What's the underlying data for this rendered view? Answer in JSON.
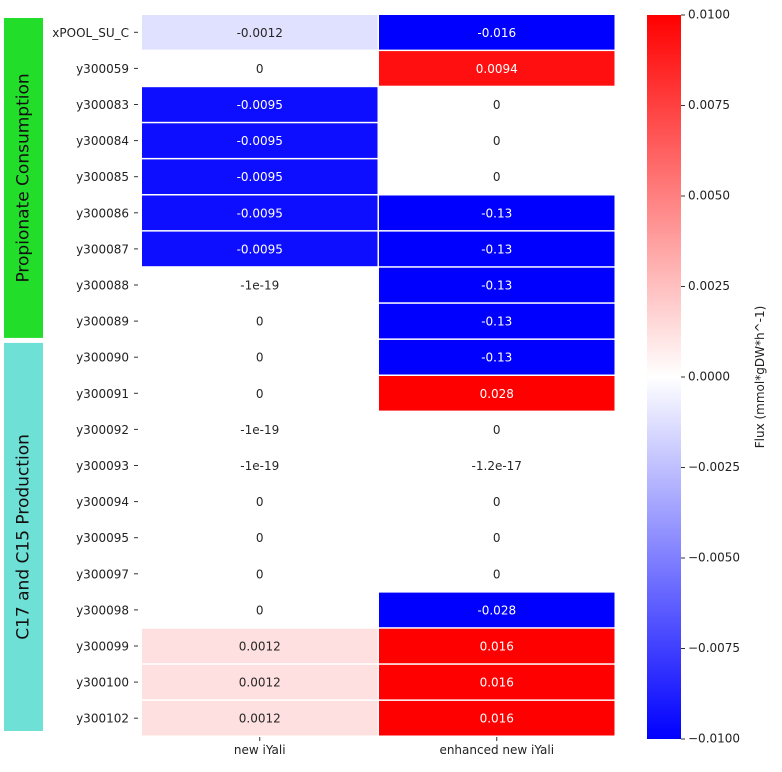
{
  "chart_data": {
    "type": "heatmap",
    "title": "",
    "xlabel": "",
    "ylabel": "",
    "columns": [
      "new iYali",
      "enhanced new iYali"
    ],
    "rows": [
      {
        "label": "xPOOL_SU_C",
        "values": [
          -0.0012,
          -0.016
        ],
        "text": [
          "-0.0012",
          "-0.016"
        ]
      },
      {
        "label": "y300059",
        "values": [
          0,
          0.0094
        ],
        "text": [
          "0",
          "0.0094"
        ]
      },
      {
        "label": "y300083",
        "values": [
          -0.0095,
          0
        ],
        "text": [
          "-0.0095",
          "0"
        ]
      },
      {
        "label": "y300084",
        "values": [
          -0.0095,
          0
        ],
        "text": [
          "-0.0095",
          "0"
        ]
      },
      {
        "label": "y300085",
        "values": [
          -0.0095,
          0
        ],
        "text": [
          "-0.0095",
          "0"
        ]
      },
      {
        "label": "y300086",
        "values": [
          -0.0095,
          -0.13
        ],
        "text": [
          "-0.0095",
          "-0.13"
        ]
      },
      {
        "label": "y300087",
        "values": [
          -0.0095,
          -0.13
        ],
        "text": [
          "-0.0095",
          "-0.13"
        ]
      },
      {
        "label": "y300088",
        "values": [
          -1e-19,
          -0.13
        ],
        "text": [
          "-1e-19",
          "-0.13"
        ]
      },
      {
        "label": "y300089",
        "values": [
          0,
          -0.13
        ],
        "text": [
          "0",
          "-0.13"
        ]
      },
      {
        "label": "y300090",
        "values": [
          0,
          -0.13
        ],
        "text": [
          "0",
          "-0.13"
        ]
      },
      {
        "label": "y300091",
        "values": [
          0,
          0.028
        ],
        "text": [
          "0",
          "0.028"
        ]
      },
      {
        "label": "y300092",
        "values": [
          -1e-19,
          0
        ],
        "text": [
          "-1e-19",
          "0"
        ]
      },
      {
        "label": "y300093",
        "values": [
          -1e-19,
          -1.2e-17
        ],
        "text": [
          "-1e-19",
          "-1.2e-17"
        ]
      },
      {
        "label": "y300094",
        "values": [
          0,
          0
        ],
        "text": [
          "0",
          "0"
        ]
      },
      {
        "label": "y300095",
        "values": [
          0,
          0
        ],
        "text": [
          "0",
          "0"
        ]
      },
      {
        "label": "y300097",
        "values": [
          0,
          0
        ],
        "text": [
          "0",
          "0"
        ]
      },
      {
        "label": "y300098",
        "values": [
          0,
          -0.028
        ],
        "text": [
          "0",
          "-0.028"
        ]
      },
      {
        "label": "y300099",
        "values": [
          0.0012,
          0.016
        ],
        "text": [
          "0.0012",
          "0.016"
        ]
      },
      {
        "label": "y300100",
        "values": [
          0.0012,
          0.016
        ],
        "text": [
          "0.0012",
          "0.016"
        ]
      },
      {
        "label": "y300102",
        "values": [
          0.0012,
          0.016
        ],
        "text": [
          "0.0012",
          "0.016"
        ]
      }
    ],
    "row_groups": [
      {
        "label": "Propionate Consumption",
        "first_row": 0,
        "last_row": 8,
        "color": "#22dd2a"
      },
      {
        "label": "C17 and C15 Production",
        "first_row": 9,
        "last_row": 19,
        "color": "#6ee0d6"
      }
    ],
    "colorbar": {
      "label": "Flux (mmol*gDW*h^-1)",
      "min": -0.01,
      "max": 0.01,
      "ticks": [
        0.01,
        0.0075,
        0.005,
        0.0025,
        0,
        -0.0025,
        -0.005,
        -0.0075,
        -0.01
      ],
      "tick_labels": [
        "0.0100",
        "0.0075",
        "0.0050",
        "0.0025",
        "0.0000",
        "−0.0025",
        "−0.0050",
        "−0.0075",
        "−0.0100"
      ],
      "colormap": "bwr",
      "color_low": "#0000ff",
      "color_mid": "#ffffff",
      "color_high": "#ff0000"
    },
    "grid": false,
    "legend": "colorbar-right"
  }
}
